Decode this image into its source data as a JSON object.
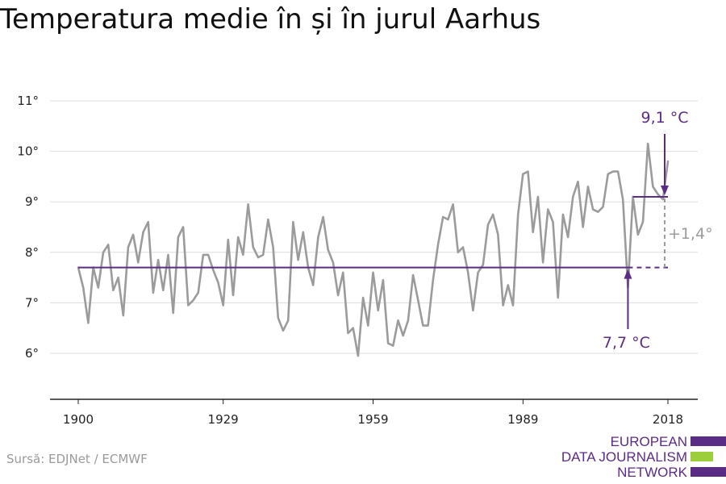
{
  "title": "Temperatura medie în și în jurul Aarhus",
  "source": "Sursă: EDJNet / ECMWF",
  "logo": {
    "lines": [
      "EUROPEAN",
      "DATA JOURNALISM",
      "NETWORK"
    ],
    "colors": [
      "#5b2c86",
      "#9ccd3a",
      "#5b2c86"
    ]
  },
  "colors": {
    "series": "#9b9b9b",
    "reference": "#5b2c86",
    "annotation_delta": "#9b9b9b",
    "grid": "#dddddd",
    "axis": "#222222"
  },
  "chart_data": {
    "type": "line",
    "title": "Temperatura medie în și în jurul Aarhus",
    "xlabel": "",
    "ylabel": "",
    "x_ticks": [
      1900,
      1929,
      1959,
      1989,
      2018
    ],
    "y_ticks": [
      6,
      7,
      8,
      9,
      10,
      11
    ],
    "y_tick_labels": [
      "6°",
      "7°",
      "8°",
      "9°",
      "10°",
      "11°"
    ],
    "xlim": [
      1900,
      2018
    ],
    "ylim": [
      5,
      11
    ],
    "grid": "horizontal",
    "series": [
      {
        "x_start": 1900,
        "values": [
          7.7,
          7.3,
          6.6,
          7.7,
          7.3,
          8.0,
          8.15,
          7.25,
          7.5,
          6.75,
          8.1,
          8.35,
          7.8,
          8.4,
          8.6,
          7.2,
          7.85,
          7.25,
          7.95,
          6.8,
          8.3,
          8.5,
          6.95,
          7.05,
          7.2,
          7.95,
          7.95,
          7.65,
          7.4,
          6.95,
          8.25,
          7.15,
          8.3,
          7.95,
          8.95,
          8.1,
          7.9,
          7.95,
          8.65,
          8.1,
          6.7,
          6.45,
          6.65,
          8.6,
          7.85,
          8.4,
          7.7,
          7.35,
          8.3,
          8.7,
          8.05,
          7.8,
          7.15,
          7.6,
          6.4,
          6.5,
          5.95,
          7.1,
          6.55,
          7.6,
          6.85,
          7.45,
          6.2,
          6.15,
          6.65,
          6.35,
          6.65,
          7.55,
          7.05,
          6.55,
          6.55,
          7.45,
          8.15,
          8.7,
          8.65,
          8.95,
          8.0,
          8.1,
          7.6,
          6.85,
          7.6,
          7.75,
          8.55,
          8.75,
          8.35,
          6.95,
          7.35,
          6.95,
          8.75,
          9.55,
          9.6,
          8.4,
          9.1,
          7.8,
          8.85,
          8.6,
          7.1,
          8.75,
          8.3,
          9.1,
          9.4,
          8.5,
          9.3,
          8.85,
          8.8,
          8.9,
          9.55,
          9.6,
          9.6,
          9.05,
          7.3,
          9.1,
          8.35,
          8.6,
          10.15,
          9.3,
          9.15,
          9.05,
          9.8
        ]
      }
    ],
    "reference_lines": [
      {
        "value": 7.7,
        "from": 1900,
        "to": 2018,
        "solid_until": 2010,
        "style": "solid-then-dashed"
      },
      {
        "value": 9.1,
        "from": 2011,
        "to": 2018,
        "style": "solid"
      }
    ],
    "annotations": [
      {
        "text": "9,1 °C",
        "x": 2018,
        "y": 9.1,
        "arrow": "down"
      },
      {
        "text": "7,7 °C",
        "x": 2010,
        "y": 7.7,
        "arrow": "up"
      },
      {
        "text": "+1,4°",
        "x": 2018,
        "y_from": 7.7,
        "y_to": 9.1,
        "style": "dashed-bracket"
      }
    ]
  }
}
